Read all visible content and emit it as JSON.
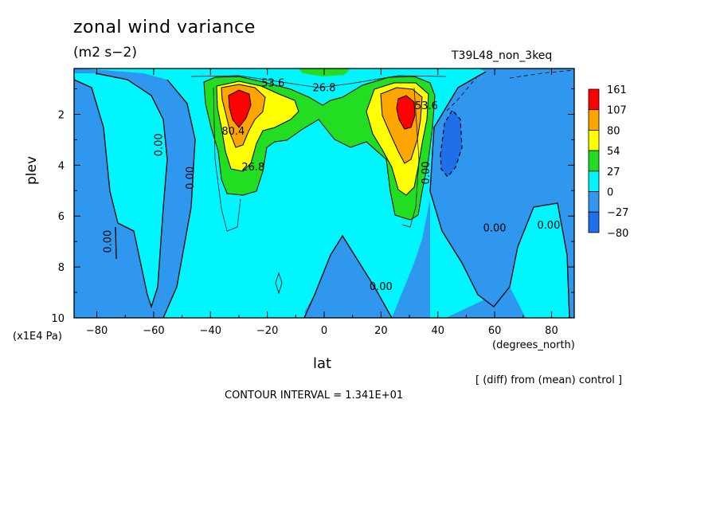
{
  "title": "zonal wind variance",
  "units": "(m2 s−2)",
  "run_name": "T39L48_non_3keq",
  "diff_note": "[ (diff) from (mean) control ]",
  "contour_interval": "CONTOUR INTERVAL = 1.341E+01",
  "colors": {
    "c_neg80": "#1f6fe8",
    "c_neg27": "#2f98ee",
    "c_0": "#00f5ff",
    "c_27": "#22dd22",
    "c_54": "#ffff00",
    "c_80": "#ffa500",
    "c_107": "#ff0000"
  },
  "chart_data": {
    "type": "heatmap",
    "title": "zonal wind variance",
    "subtitle": "(m2 s−2)",
    "xlabel": "lat",
    "xunits": "(degrees_north)",
    "ylabel": "plev",
    "yunits": "(x1E4 Pa)",
    "xlim": [
      -88,
      88
    ],
    "ylim": [
      10,
      0.2
    ],
    "x_ticks": [
      -80,
      -60,
      -40,
      -20,
      0,
      20,
      40,
      60,
      80
    ],
    "x_tick_labels": [
      "−80",
      "−60",
      "−40",
      "−20",
      "0",
      "20",
      "40",
      "60",
      "80"
    ],
    "y_ticks": [
      2,
      4,
      6,
      8,
      10
    ],
    "y_tick_labels": [
      "2",
      "4",
      "6",
      "8",
      "10"
    ],
    "colorbar": {
      "labels": [
        "161",
        "107",
        "80",
        "54",
        "27",
        "0",
        "−27",
        "−80"
      ],
      "colors": [
        "#ff0000",
        "#ffa500",
        "#ffff00",
        "#22dd22",
        "#00f5ff",
        "#2f98ee",
        "#1f6fe8"
      ]
    },
    "contour_labels": [
      {
        "text": "26.8",
        "lat": 0,
        "plev": 1.1
      },
      {
        "text": "53.6",
        "lat": -18,
        "plev": 0.9
      },
      {
        "text": "80.4",
        "lat": -32,
        "plev": 2.8
      },
      {
        "text": "26.8",
        "lat": -25,
        "plev": 4.2
      },
      {
        "text": "53.6",
        "lat": 36,
        "plev": 1.8
      },
      {
        "text": "0.00",
        "lat": -57,
        "plev": 3.2
      },
      {
        "text": "0.00",
        "lat": -46,
        "plev": 4.5
      },
      {
        "text": "0.00",
        "lat": -75,
        "plev": 7.0
      },
      {
        "text": "0.00",
        "lat": 37,
        "plev": 4.3
      },
      {
        "text": "0.00",
        "lat": 60,
        "plev": 6.6
      },
      {
        "text": "0.00",
        "lat": 79,
        "plev": 6.5
      },
      {
        "text": "0.00",
        "lat": 20,
        "plev": 8.9
      }
    ]
  }
}
